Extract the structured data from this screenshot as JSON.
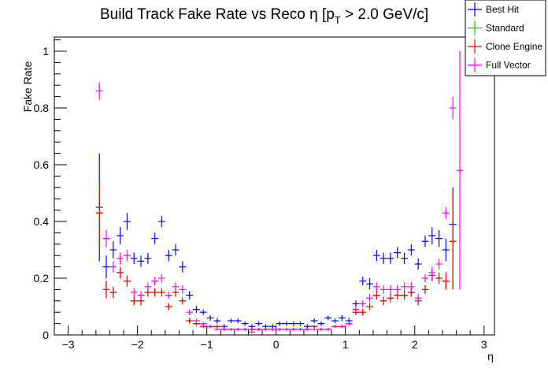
{
  "chart_data": {
    "type": "scatter",
    "title": "Build Track Fake Rate vs Reco η [p",
    "title_sub": "T",
    "title_tail": " > 2.0 GeV/c]",
    "xlabel": "η",
    "ylabel": "Fake Rate",
    "xlim": [
      -3.2,
      3.15
    ],
    "ylim": [
      0,
      1.05
    ],
    "x_ticks": [
      -3,
      -2,
      -1,
      0,
      1,
      2,
      3
    ],
    "y_ticks": [
      0,
      0.2,
      0.4,
      0.6,
      0.8,
      1
    ],
    "x_tick_labels": [
      "−3",
      "−2",
      "−1",
      "0",
      "1",
      "2",
      "3"
    ],
    "y_tick_labels": [
      "0",
      "0.2",
      "0.4",
      "0.6",
      "0.8",
      "1"
    ],
    "bin_half_width": 0.05,
    "legend_position": "top-right",
    "series": [
      {
        "name": "Best Hit",
        "color": "#0000ff",
        "x": [
          -2.55,
          -2.45,
          -2.35,
          -2.25,
          -2.15,
          -2.05,
          -1.95,
          -1.85,
          -1.75,
          -1.65,
          -1.55,
          -1.45,
          -1.35,
          -1.25,
          -1.15,
          -1.05,
          -0.95,
          -0.85,
          -0.75,
          -0.65,
          -0.55,
          -0.45,
          -0.35,
          -0.25,
          -0.15,
          -0.05,
          0.05,
          0.15,
          0.25,
          0.35,
          0.45,
          0.55,
          0.65,
          0.75,
          0.85,
          0.95,
          1.05,
          1.15,
          1.25,
          1.35,
          1.45,
          1.55,
          1.65,
          1.75,
          1.85,
          1.95,
          2.05,
          2.15,
          2.25,
          2.35,
          2.45,
          2.55
        ],
        "y": [
          0.45,
          0.24,
          0.3,
          0.35,
          0.4,
          0.27,
          0.26,
          0.27,
          0.34,
          0.4,
          0.28,
          0.3,
          0.24,
          0.14,
          0.09,
          0.08,
          0.06,
          0.05,
          0.03,
          0.05,
          0.05,
          0.04,
          0.03,
          0.04,
          0.03,
          0.03,
          0.04,
          0.04,
          0.04,
          0.04,
          0.03,
          0.05,
          0.04,
          0.06,
          0.05,
          0.06,
          0.05,
          0.11,
          0.19,
          0.18,
          0.28,
          0.27,
          0.27,
          0.29,
          0.27,
          0.3,
          0.25,
          0.33,
          0.35,
          0.34,
          0.3,
          0.39
        ],
        "err": [
          0.19,
          0.04,
          0.03,
          0.03,
          0.03,
          0.02,
          0.02,
          0.02,
          0.02,
          0.02,
          0.02,
          0.02,
          0.02,
          0.015,
          0.012,
          0.01,
          0.01,
          0.01,
          0.008,
          0.008,
          0.008,
          0.008,
          0.008,
          0.008,
          0.008,
          0.008,
          0.008,
          0.008,
          0.008,
          0.008,
          0.008,
          0.008,
          0.008,
          0.008,
          0.008,
          0.01,
          0.01,
          0.012,
          0.015,
          0.02,
          0.02,
          0.02,
          0.02,
          0.02,
          0.02,
          0.02,
          0.02,
          0.02,
          0.03,
          0.03,
          0.04,
          0.13
        ]
      },
      {
        "name": "Standard",
        "color": "#00cc00",
        "x": [
          -2.55,
          -2.45,
          -2.35,
          -2.25,
          -2.15,
          -2.05,
          -1.95,
          -1.85,
          -1.75,
          -1.65,
          -1.55,
          -1.45,
          -1.35,
          -1.25,
          -1.15,
          -1.05,
          -0.95,
          -0.85,
          -0.75,
          -0.65,
          -0.55,
          -0.45,
          -0.35,
          -0.25,
          -0.15,
          -0.05,
          0.05,
          0.15,
          0.25,
          0.35,
          0.45,
          0.55,
          0.65,
          0.75,
          0.85,
          0.95,
          1.05,
          1.15,
          1.25,
          1.35,
          1.45,
          1.55,
          1.65,
          1.75,
          1.85,
          1.95,
          2.05,
          2.15,
          2.25,
          2.35,
          2.45,
          2.55
        ],
        "y": [
          0.43,
          0.16,
          0.15,
          0.22,
          0.19,
          0.12,
          0.12,
          0.15,
          0.15,
          0.15,
          0.1,
          0.15,
          0.12,
          0.05,
          0.04,
          0.03,
          0.03,
          0.03,
          0.02,
          0.02,
          0.02,
          0.02,
          0.02,
          0.02,
          0.02,
          0.02,
          0.02,
          0.02,
          0.02,
          0.02,
          0.02,
          0.03,
          0.02,
          0.02,
          0.03,
          0.03,
          0.04,
          0.08,
          0.08,
          0.1,
          0.14,
          0.12,
          0.13,
          0.14,
          0.14,
          0.15,
          0.12,
          0.16,
          0.21,
          0.2,
          0.19,
          0.33
        ],
        "err": [
          0.12,
          0.03,
          0.02,
          0.02,
          0.02,
          0.015,
          0.015,
          0.015,
          0.015,
          0.015,
          0.012,
          0.015,
          0.012,
          0.01,
          0.008,
          0.006,
          0.006,
          0.006,
          0.005,
          0.005,
          0.005,
          0.005,
          0.005,
          0.005,
          0.005,
          0.005,
          0.005,
          0.005,
          0.005,
          0.005,
          0.005,
          0.005,
          0.005,
          0.005,
          0.005,
          0.006,
          0.008,
          0.01,
          0.012,
          0.012,
          0.015,
          0.015,
          0.015,
          0.015,
          0.015,
          0.015,
          0.015,
          0.015,
          0.02,
          0.02,
          0.03,
          0.17
        ]
      },
      {
        "name": "Clone Engine",
        "color": "#ff0000",
        "x": [
          -2.55,
          -2.45,
          -2.35,
          -2.25,
          -2.15,
          -2.05,
          -1.95,
          -1.85,
          -1.75,
          -1.65,
          -1.55,
          -1.45,
          -1.35,
          -1.25,
          -1.15,
          -1.05,
          -0.95,
          -0.85,
          -0.75,
          -0.65,
          -0.55,
          -0.45,
          -0.35,
          -0.25,
          -0.15,
          -0.05,
          0.05,
          0.15,
          0.25,
          0.35,
          0.45,
          0.55,
          0.65,
          0.75,
          0.85,
          0.95,
          1.05,
          1.15,
          1.25,
          1.35,
          1.45,
          1.55,
          1.65,
          1.75,
          1.85,
          1.95,
          2.05,
          2.15,
          2.25,
          2.35,
          2.45,
          2.55
        ],
        "y": [
          0.43,
          0.16,
          0.15,
          0.22,
          0.19,
          0.12,
          0.12,
          0.15,
          0.15,
          0.15,
          0.1,
          0.15,
          0.12,
          0.05,
          0.04,
          0.03,
          0.03,
          0.03,
          0.02,
          0.02,
          0.02,
          0.02,
          0.02,
          0.02,
          0.02,
          0.02,
          0.02,
          0.02,
          0.02,
          0.02,
          0.02,
          0.03,
          0.02,
          0.02,
          0.03,
          0.03,
          0.04,
          0.08,
          0.08,
          0.1,
          0.14,
          0.12,
          0.13,
          0.14,
          0.14,
          0.15,
          0.12,
          0.16,
          0.21,
          0.2,
          0.19,
          0.33
        ],
        "err": [
          0.12,
          0.03,
          0.02,
          0.02,
          0.02,
          0.015,
          0.015,
          0.015,
          0.015,
          0.015,
          0.012,
          0.015,
          0.012,
          0.01,
          0.008,
          0.006,
          0.006,
          0.006,
          0.005,
          0.005,
          0.005,
          0.005,
          0.005,
          0.005,
          0.005,
          0.005,
          0.005,
          0.005,
          0.005,
          0.005,
          0.005,
          0.005,
          0.005,
          0.005,
          0.005,
          0.006,
          0.008,
          0.01,
          0.012,
          0.012,
          0.015,
          0.015,
          0.015,
          0.015,
          0.015,
          0.015,
          0.015,
          0.015,
          0.02,
          0.02,
          0.03,
          0.17
        ]
      },
      {
        "name": "Full Vector",
        "color": "#ff00ff",
        "x": [
          -2.55,
          -2.45,
          -2.35,
          -2.25,
          -2.15,
          -2.05,
          -1.95,
          -1.85,
          -1.75,
          -1.65,
          -1.55,
          -1.45,
          -1.35,
          -1.25,
          -1.15,
          -1.05,
          -0.95,
          -0.85,
          -0.75,
          -0.65,
          -0.55,
          -0.45,
          -0.35,
          -0.25,
          -0.15,
          -0.05,
          0.05,
          0.15,
          0.25,
          0.35,
          0.45,
          0.55,
          0.65,
          0.75,
          0.85,
          0.95,
          1.05,
          1.15,
          1.25,
          1.35,
          1.45,
          1.55,
          1.65,
          1.75,
          1.85,
          1.95,
          2.05,
          2.15,
          2.25,
          2.35,
          2.45,
          2.55,
          2.65
        ],
        "y": [
          0.86,
          0.34,
          0.24,
          0.27,
          0.28,
          0.15,
          0.14,
          0.17,
          0.19,
          0.2,
          0.14,
          0.17,
          0.16,
          0.08,
          0.05,
          0.04,
          0.03,
          0.02,
          0.02,
          0.02,
          0.02,
          0.02,
          0.01,
          0.02,
          0.02,
          0.02,
          0.02,
          0.02,
          0.02,
          0.02,
          0.02,
          0.02,
          0.02,
          0.02,
          0.03,
          0.03,
          0.04,
          0.09,
          0.11,
          0.13,
          0.17,
          0.16,
          0.16,
          0.16,
          0.17,
          0.17,
          0.13,
          0.2,
          0.22,
          0.25,
          0.43,
          0.8,
          0.58
        ],
        "err": [
          0.03,
          0.03,
          0.02,
          0.02,
          0.02,
          0.015,
          0.015,
          0.015,
          0.015,
          0.015,
          0.012,
          0.015,
          0.015,
          0.01,
          0.008,
          0.006,
          0.006,
          0.005,
          0.005,
          0.005,
          0.005,
          0.005,
          0.005,
          0.005,
          0.005,
          0.005,
          0.005,
          0.005,
          0.005,
          0.005,
          0.005,
          0.005,
          0.005,
          0.005,
          0.005,
          0.006,
          0.008,
          0.01,
          0.012,
          0.015,
          0.015,
          0.015,
          0.015,
          0.015,
          0.015,
          0.015,
          0.015,
          0.015,
          0.02,
          0.02,
          0.02,
          0.04,
          0.42
        ]
      }
    ]
  }
}
